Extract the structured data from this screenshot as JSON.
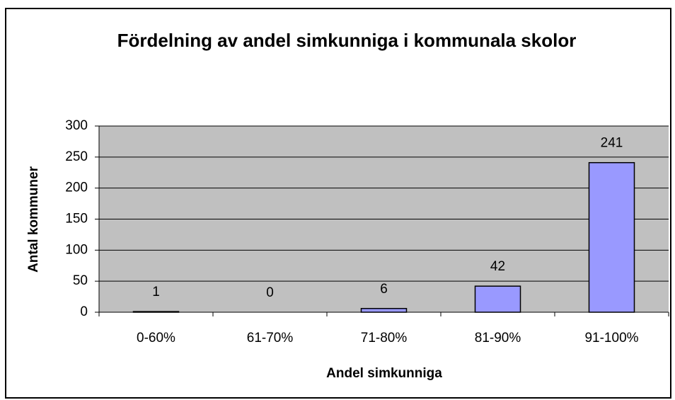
{
  "chart_data": {
    "type": "bar",
    "title": "Fördelning av andel simkunniga i kommunala skolor",
    "x_label": "Andel simkunniga",
    "y_label": "Antal kommuner",
    "categories": [
      "0-60%",
      "61-70%",
      "71-80%",
      "81-90%",
      "91-100%"
    ],
    "values": [
      1,
      0,
      6,
      42,
      241
    ],
    "color": "#9999ff",
    "ylim": [
      0,
      300
    ],
    "yticks": [
      0,
      50,
      100,
      150,
      200,
      250,
      300
    ],
    "grid": true
  }
}
